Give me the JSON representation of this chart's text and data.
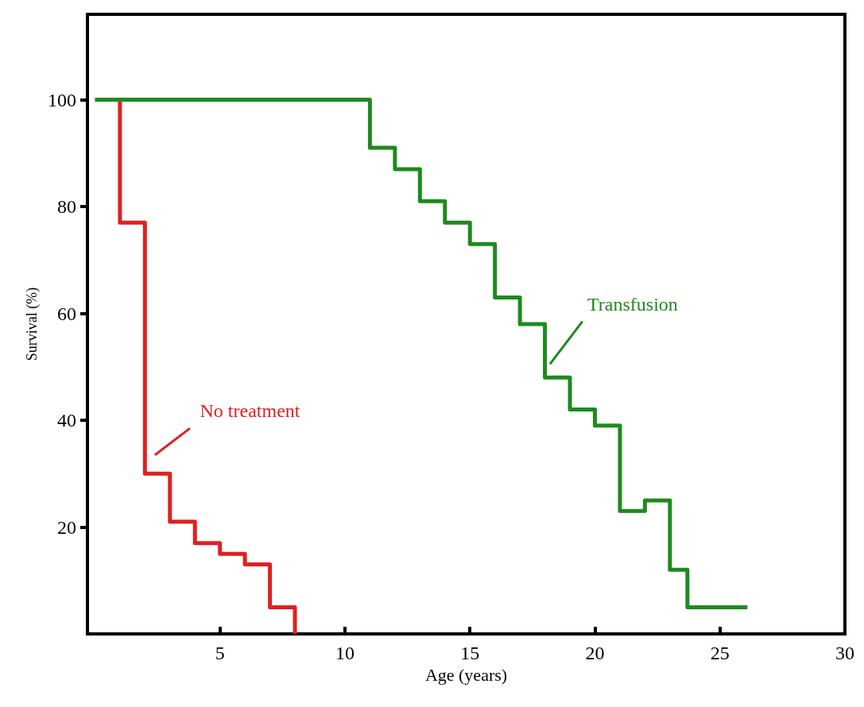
{
  "chart_data": {
    "type": "step",
    "xlabel": "Age (years)",
    "ylabel": "Survival (%)",
    "xlim": [
      -0.3,
      30
    ],
    "xticks": [
      5,
      10,
      15,
      20,
      25,
      30
    ],
    "ylim": [
      0,
      116
    ],
    "yticks": [
      20,
      40,
      60,
      80,
      100
    ],
    "grid": false,
    "legend": false,
    "marker": "none",
    "line_style": "solid",
    "series": [
      {
        "name": "No treatment",
        "color": "#e02020",
        "x": [
          1,
          2,
          3,
          4,
          5,
          6,
          7,
          8,
          8
        ],
        "values": [
          100,
          77,
          30,
          21,
          17,
          15,
          13,
          5,
          0
        ]
      },
      {
        "name": "Transfusion",
        "color": "#1e8a1e",
        "x": [
          0,
          11,
          12,
          13,
          14,
          15,
          16,
          17,
          18,
          19,
          20,
          21,
          22,
          23,
          23.7,
          26.1
        ],
        "values": [
          100,
          100,
          91,
          87,
          81,
          77,
          73,
          63,
          58,
          48,
          42,
          39,
          23,
          25,
          12,
          5
        ]
      }
    ]
  }
}
